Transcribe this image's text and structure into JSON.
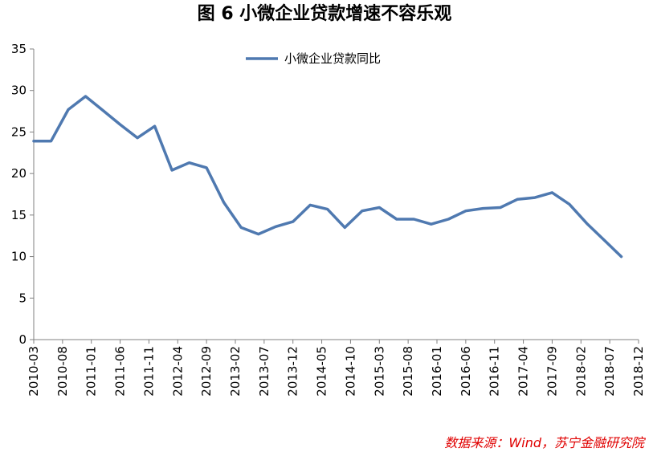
{
  "title": "图 6  小微企业贷款增速不容乐观",
  "source": "数据来源：Wind，苏宁金融研究院",
  "chart_data": {
    "type": "line",
    "x_tick_labels": [
      "2010-03",
      "2010-08",
      "2011-01",
      "2011-06",
      "2011-11",
      "2012-04",
      "2012-09",
      "2013-02",
      "2013-07",
      "2013-12",
      "2014-05",
      "2014-10",
      "2015-03",
      "2015-08",
      "2016-01",
      "2016-06",
      "2016-11",
      "2017-04",
      "2017-09",
      "2018-02",
      "2018-07",
      "2018-12"
    ],
    "y_ticks": [
      0,
      5,
      10,
      15,
      20,
      25,
      30,
      35
    ],
    "ylim": [
      0,
      35
    ],
    "legend": "top-center",
    "grid": false,
    "colors": {
      "line": "#4F79B0"
    },
    "series": [
      {
        "name": "小微企业贷款同比",
        "x": [
          "2010-03",
          "2010-06",
          "2010-09",
          "2010-12",
          "2011-03",
          "2011-06",
          "2011-09",
          "2011-12",
          "2012-03",
          "2012-06",
          "2012-09",
          "2012-12",
          "2013-03",
          "2013-06",
          "2013-09",
          "2013-12",
          "2014-03",
          "2014-06",
          "2014-09",
          "2014-12",
          "2015-03",
          "2015-06",
          "2015-09",
          "2015-12",
          "2016-03",
          "2016-06",
          "2016-09",
          "2016-12",
          "2017-03",
          "2017-06",
          "2017-09",
          "2017-12",
          "2018-03",
          "2018-06",
          "2018-09"
        ],
        "values": [
          23.9,
          23.9,
          27.7,
          29.3,
          27.6,
          25.9,
          24.3,
          25.7,
          20.4,
          21.3,
          20.7,
          16.5,
          13.5,
          12.7,
          13.6,
          14.2,
          16.2,
          15.7,
          13.5,
          15.5,
          15.9,
          14.5,
          14.5,
          13.9,
          14.5,
          15.5,
          15.8,
          15.9,
          16.9,
          17.1,
          17.7,
          16.3,
          14.0,
          12.0,
          10.0
        ]
      }
    ]
  }
}
